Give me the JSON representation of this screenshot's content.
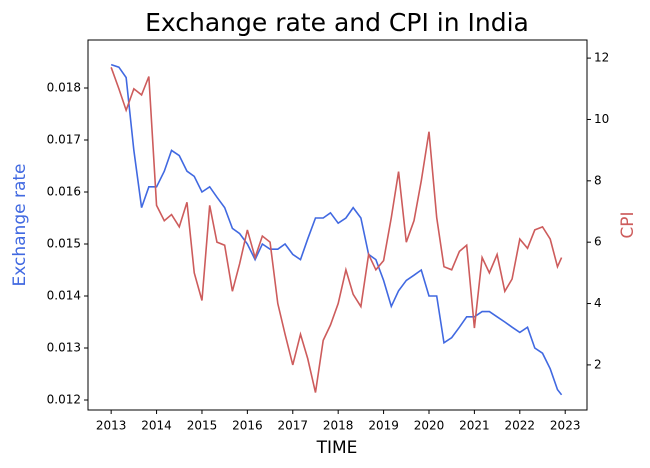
{
  "chart_data": {
    "type": "line",
    "title": "Exchange rate and CPI in India",
    "xlabel": "TIME",
    "ylabel": "Exchange rate",
    "y2label": "CPI",
    "x": [
      2013,
      2013.17,
      2013.33,
      2013.5,
      2013.67,
      2013.83,
      2014,
      2014.17,
      2014.33,
      2014.5,
      2014.67,
      2014.83,
      2015,
      2015.17,
      2015.33,
      2015.5,
      2015.67,
      2015.83,
      2016,
      2016.17,
      2016.33,
      2016.5,
      2016.67,
      2016.83,
      2017,
      2017.17,
      2017.33,
      2017.5,
      2017.67,
      2017.83,
      2018,
      2018.17,
      2018.33,
      2018.5,
      2018.67,
      2018.83,
      2019,
      2019.17,
      2019.33,
      2019.5,
      2019.67,
      2019.83,
      2020,
      2020.17,
      2020.33,
      2020.5,
      2020.67,
      2020.83,
      2021,
      2021.17,
      2021.33,
      2021.5,
      2021.67,
      2021.83,
      2022,
      2022.17,
      2022.33,
      2022.5,
      2022.67,
      2022.83,
      2022.92
    ],
    "series": [
      {
        "name": "Exchange rate",
        "color": "#4169e1",
        "axis": "y",
        "values": [
          0.01845,
          0.0184,
          0.0182,
          0.0168,
          0.0157,
          0.0161,
          0.0161,
          0.0164,
          0.0168,
          0.0167,
          0.0164,
          0.0163,
          0.016,
          0.0161,
          0.0159,
          0.0157,
          0.0153,
          0.0152,
          0.015,
          0.0147,
          0.015,
          0.0149,
          0.0149,
          0.015,
          0.0148,
          0.0147,
          0.0151,
          0.0155,
          0.0155,
          0.0156,
          0.0154,
          0.0155,
          0.0157,
          0.0155,
          0.0148,
          0.0147,
          0.0143,
          0.0138,
          0.0141,
          0.0143,
          0.0144,
          0.0145,
          0.014,
          0.014,
          0.0131,
          0.0132,
          0.0134,
          0.0136,
          0.0136,
          0.0137,
          0.0137,
          0.0136,
          0.0135,
          0.0134,
          0.0133,
          0.0134,
          0.013,
          0.0129,
          0.0126,
          0.0122,
          0.0121
        ]
      },
      {
        "name": "CPI",
        "color": "#cd5c5c",
        "axis": "y2",
        "values": [
          11.7,
          11.0,
          10.3,
          11.0,
          10.8,
          11.4,
          7.2,
          6.7,
          6.9,
          6.5,
          7.3,
          5.0,
          4.1,
          7.2,
          6.0,
          5.9,
          4.4,
          5.3,
          6.4,
          5.5,
          6.2,
          6.0,
          4.0,
          3.0,
          2.0,
          3.0,
          2.2,
          1.1,
          2.8,
          3.3,
          4.0,
          5.1,
          4.3,
          3.9,
          5.6,
          5.1,
          5.4,
          6.8,
          8.3,
          6.0,
          6.7,
          8.0,
          9.6,
          6.8,
          5.2,
          5.1,
          5.7,
          5.9,
          3.2,
          5.5,
          5.0,
          5.6,
          4.4,
          4.8,
          6.1,
          5.8,
          6.4,
          6.5,
          6.1,
          5.2,
          5.5
        ]
      }
    ],
    "xlim": [
      2012.49,
      2023.48
    ],
    "xticks": [
      2013,
      2014,
      2015,
      2016,
      2017,
      2018,
      2019,
      2020,
      2021,
      2022,
      2023
    ],
    "ylim": [
      0.011808,
      0.018923
    ],
    "yticks": [
      0.012,
      0.013,
      0.014,
      0.015,
      0.016,
      0.017,
      0.018
    ],
    "y2lim": [
      0.53,
      12.59
    ],
    "y2ticks": [
      2,
      4,
      6,
      8,
      10,
      12
    ]
  }
}
